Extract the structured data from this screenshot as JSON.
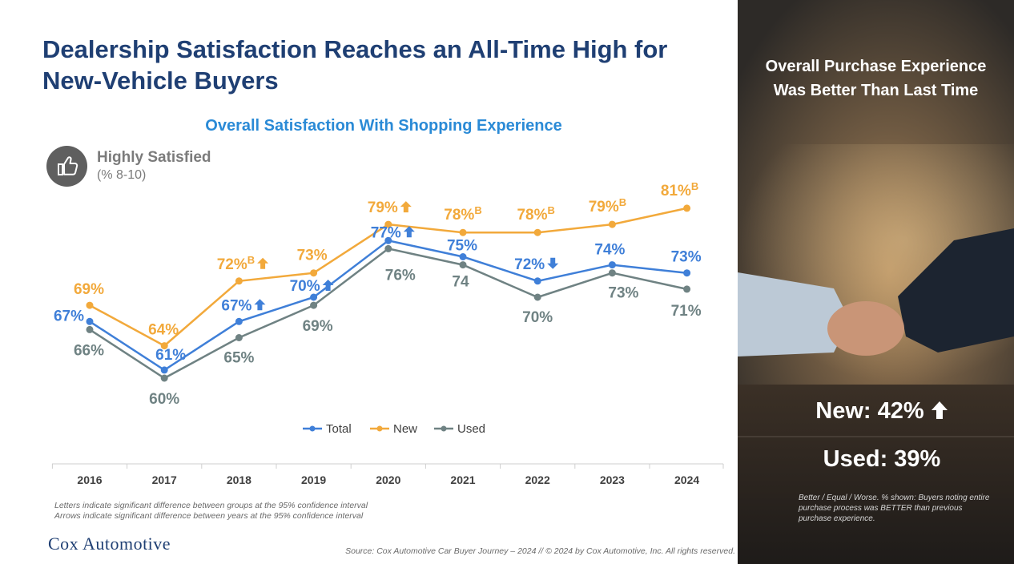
{
  "title": "Dealership Satisfaction Reaches an All-Time High for New-Vehicle Buyers",
  "subtitle": "Overall Satisfaction With Shopping Experience",
  "badge": {
    "icon": "thumbs-up-icon",
    "label": "Highly Satisfied",
    "sublabel": "(% 8-10)"
  },
  "colors": {
    "total": "#3f7fd8",
    "new": "#f2a93b",
    "used": "#6f8283",
    "title": "#1f3f73",
    "subtitle": "#2a8ad6"
  },
  "chart_data": {
    "type": "line",
    "categories": [
      "2016",
      "2017",
      "2018",
      "2019",
      "2020",
      "2021",
      "2022",
      "2023",
      "2024"
    ],
    "ylim": [
      55,
      85
    ],
    "legend_position": "bottom",
    "series": [
      {
        "name": "Total",
        "values": [
          67,
          61,
          67,
          70,
          77,
          75,
          72,
          74,
          73
        ],
        "labels": [
          "67%",
          "61%",
          "67%",
          "70%",
          "77%",
          "75%",
          "72%",
          "74%",
          "73%"
        ],
        "markers": [
          "",
          "",
          "up",
          "up",
          "up",
          "",
          "down",
          "",
          ""
        ]
      },
      {
        "name": "New",
        "values": [
          69,
          64,
          72,
          73,
          79,
          78,
          78,
          79,
          81
        ],
        "labels": [
          "69%",
          "64%",
          "72%",
          "73%",
          "79%",
          "78%",
          "78%",
          "79%",
          "81%"
        ],
        "superscripts": [
          "",
          "",
          "B",
          "",
          "",
          "B",
          "B",
          "B",
          "B"
        ],
        "markers": [
          "",
          "",
          "up",
          "",
          "up",
          "",
          "",
          "",
          ""
        ]
      },
      {
        "name": "Used",
        "values": [
          66,
          60,
          65,
          69,
          76,
          74,
          70,
          73,
          71
        ],
        "labels": [
          "66%",
          "60%",
          "65%",
          "69%",
          "76%",
          "74",
          "70%",
          "73%",
          "71%"
        ]
      }
    ]
  },
  "footnotes": [
    "Letters indicate significant difference between groups at the 95% confidence interval",
    "Arrows indicate significant difference between years at the 95% confidence interval"
  ],
  "logo": "Cox Automotive",
  "source": "Source: Cox Automotive Car Buyer Journey – 2024 // © 2024 by Cox Automotive, Inc. All rights reserved.",
  "right_panel": {
    "title_line1": "Overall Purchase Experience",
    "title_line2": "Was Better Than Last Time",
    "new_text": "New: 42%",
    "new_marker": "up",
    "used_text": "Used: 39%",
    "note": "Better / Equal / Worse. % shown: Buyers noting entire purchase process was BETTER than previous purchase experience."
  }
}
